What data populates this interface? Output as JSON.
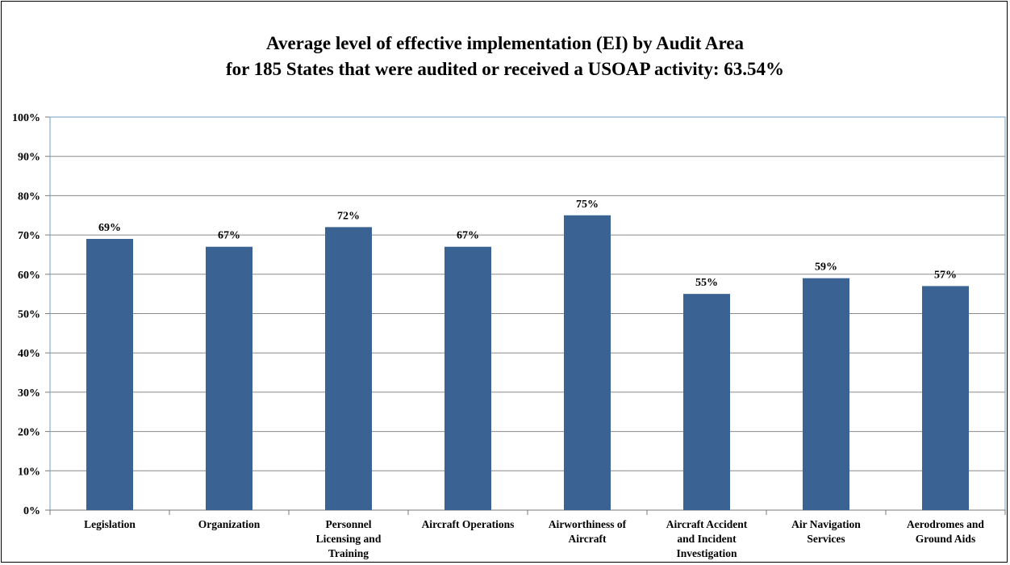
{
  "chart_data": {
    "type": "bar",
    "title": "Average level of effective implementation (EI) by Audit Area",
    "subtitle": "for 185 States that were audited or received a USOAP activity: 63.54%",
    "categories": [
      [
        "Legislation"
      ],
      [
        "Organization"
      ],
      [
        "Personnel",
        "Licensing and",
        "Training"
      ],
      [
        "Aircraft Operations"
      ],
      [
        "Airworthiness of",
        "Aircraft"
      ],
      [
        "Aircraft Accident",
        "and Incident",
        "Investigation"
      ],
      [
        "Air Navigation",
        "Services"
      ],
      [
        "Aerodromes and",
        "Ground Aids"
      ]
    ],
    "values": [
      69,
      67,
      72,
      67,
      75,
      55,
      59,
      57
    ],
    "data_labels": [
      "69%",
      "67%",
      "72%",
      "67%",
      "75%",
      "55%",
      "59%",
      "57%"
    ],
    "yticks": [
      "0%",
      "10%",
      "20%",
      "30%",
      "40%",
      "50%",
      "60%",
      "70%",
      "80%",
      "90%",
      "100%"
    ],
    "ylim": [
      0,
      100
    ],
    "grid": true,
    "xlabel": "",
    "ylabel": "",
    "colors": {
      "bar": "#3A6394",
      "grid": "#8a8a8a",
      "plot_border": "#6fa0c8"
    }
  }
}
